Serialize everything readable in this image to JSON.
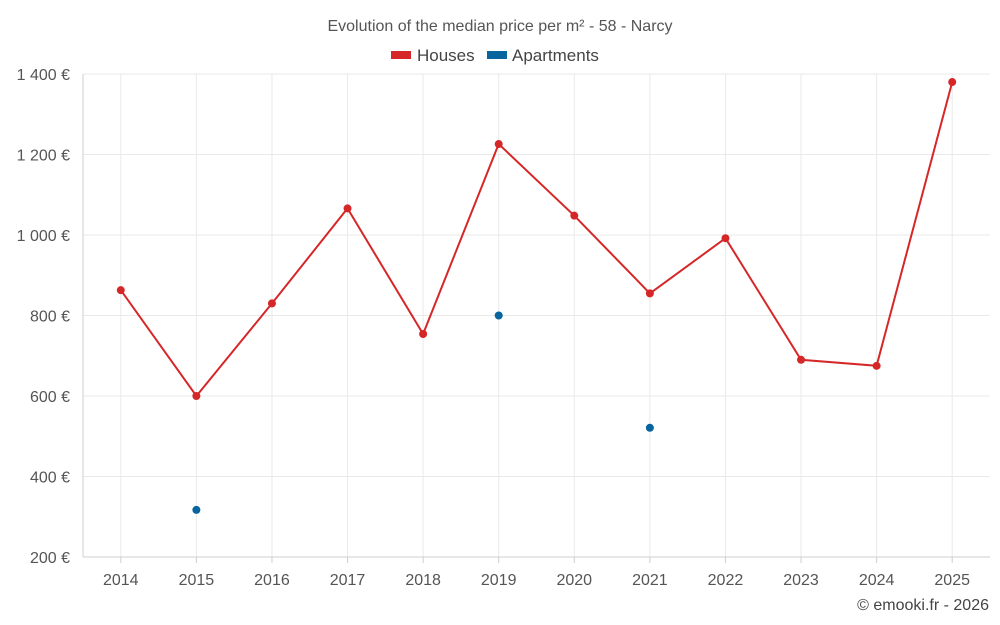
{
  "chart_data": {
    "type": "line",
    "title": "Evolution of the median price per m² - 58 - Narcy",
    "categories": [
      "2014",
      "2015",
      "2016",
      "2017",
      "2018",
      "2019",
      "2020",
      "2021",
      "2022",
      "2023",
      "2024",
      "2025"
    ],
    "series": [
      {
        "name": "Houses",
        "color": "#d62728",
        "values": [
          863,
          600,
          830,
          1066,
          754,
          1226,
          1048,
          855,
          992,
          690,
          675,
          1380
        ]
      },
      {
        "name": "Apartments",
        "color": "#08649c",
        "values": [
          null,
          317,
          null,
          null,
          null,
          800,
          null,
          521,
          null,
          null,
          null,
          null
        ]
      }
    ],
    "ylim": [
      200,
      1400
    ],
    "yticks": [
      200,
      400,
      600,
      800,
      1000,
      1200,
      1400
    ],
    "ytick_labels": [
      "200 €",
      "400 €",
      "600 €",
      "800 €",
      "1 000 €",
      "1 200 €",
      "1 400 €"
    ],
    "xlabel": "",
    "ylabel": "",
    "legend_position": "top-center",
    "grid": true
  },
  "credit": "© emooki.fr - 2026"
}
